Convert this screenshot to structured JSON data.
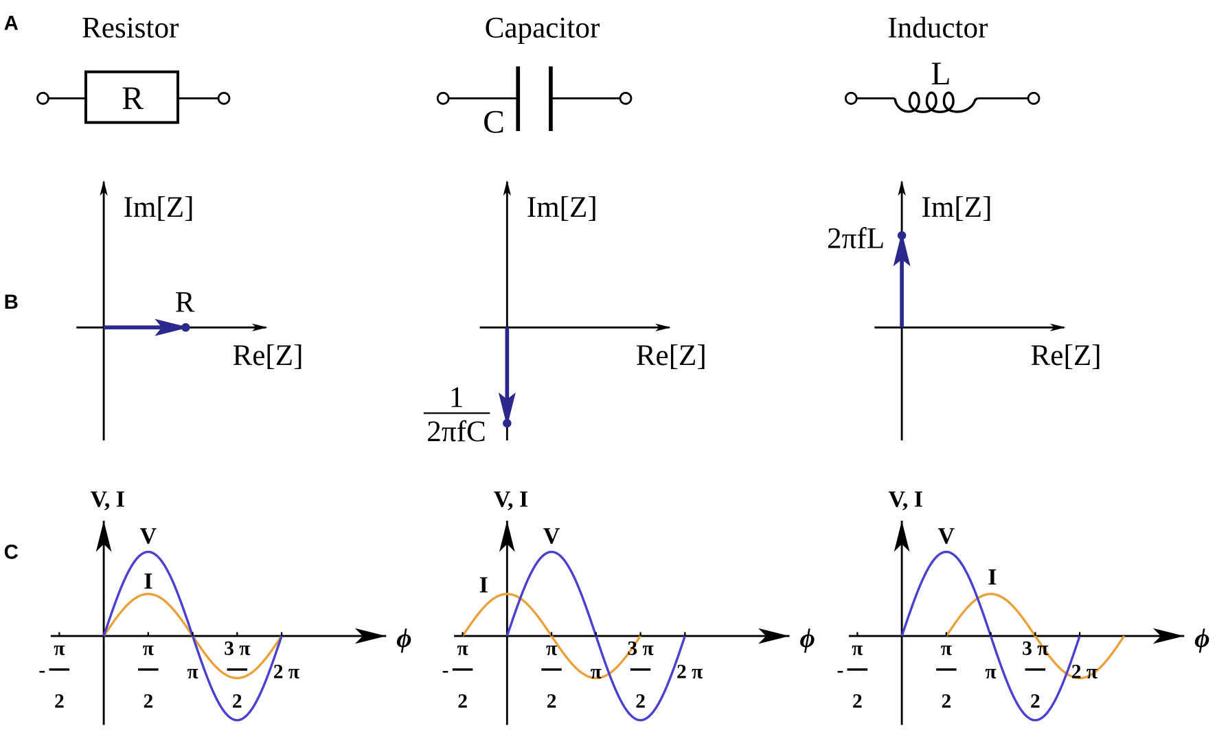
{
  "panel_letters": {
    "a": "A",
    "b": "B",
    "c": "C"
  },
  "components": [
    {
      "title": "Resistor",
      "symbol_label": "R"
    },
    {
      "title": "Capacitor",
      "symbol_label": "C"
    },
    {
      "title": "Inductor",
      "symbol_label": "L"
    }
  ],
  "impedance": {
    "im_label": "Im[Z]",
    "re_label": "Re[Z]",
    "resistor_value": "R",
    "capacitor_value_num": "1",
    "capacitor_value_den": "2πfC",
    "inductor_value": "2πfL"
  },
  "colors": {
    "voltage": "#4b3fcf",
    "current": "#e9a13b",
    "phasor": "#2b2a8c"
  },
  "waveforms": {
    "y_label": "V, I",
    "x_label": "ϕ",
    "v_label": "V",
    "i_label": "I",
    "ticks": [
      {
        "sign": "-",
        "num": "π",
        "den": "2"
      },
      {
        "sign": "",
        "num": "π",
        "den": "2"
      },
      {
        "sign": "",
        "num": "π",
        "den": ""
      },
      {
        "sign": "",
        "num": "3 π",
        "den": "2"
      },
      {
        "sign": "",
        "num": "2 π",
        "den": ""
      }
    ]
  },
  "chart_data": [
    {
      "type": "line",
      "panel": "Resistor",
      "xlabel": "ϕ",
      "ylabel": "V, I",
      "series": [
        {
          "name": "V",
          "amplitude": 1,
          "phase_shift": "0",
          "x_range": [
            "0",
            "2π"
          ]
        },
        {
          "name": "I",
          "amplitude": 0.5,
          "phase_shift": "0",
          "x_range": [
            "0",
            "2π"
          ]
        }
      ]
    },
    {
      "type": "line",
      "panel": "Capacitor",
      "xlabel": "ϕ",
      "ylabel": "V, I",
      "series": [
        {
          "name": "V",
          "amplitude": 1,
          "phase_shift": "0",
          "x_range": [
            "0",
            "2π"
          ]
        },
        {
          "name": "I",
          "amplitude": 0.5,
          "phase_shift": "+π/2",
          "x_range": [
            "-π/2",
            "3π/2"
          ]
        }
      ]
    },
    {
      "type": "line",
      "panel": "Inductor",
      "xlabel": "ϕ",
      "ylabel": "V, I",
      "series": [
        {
          "name": "V",
          "amplitude": 1,
          "phase_shift": "0",
          "x_range": [
            "0",
            "2π"
          ]
        },
        {
          "name": "I",
          "amplitude": 0.5,
          "phase_shift": "-π/2",
          "x_range": [
            "π/2",
            "5π/2"
          ]
        }
      ]
    }
  ]
}
